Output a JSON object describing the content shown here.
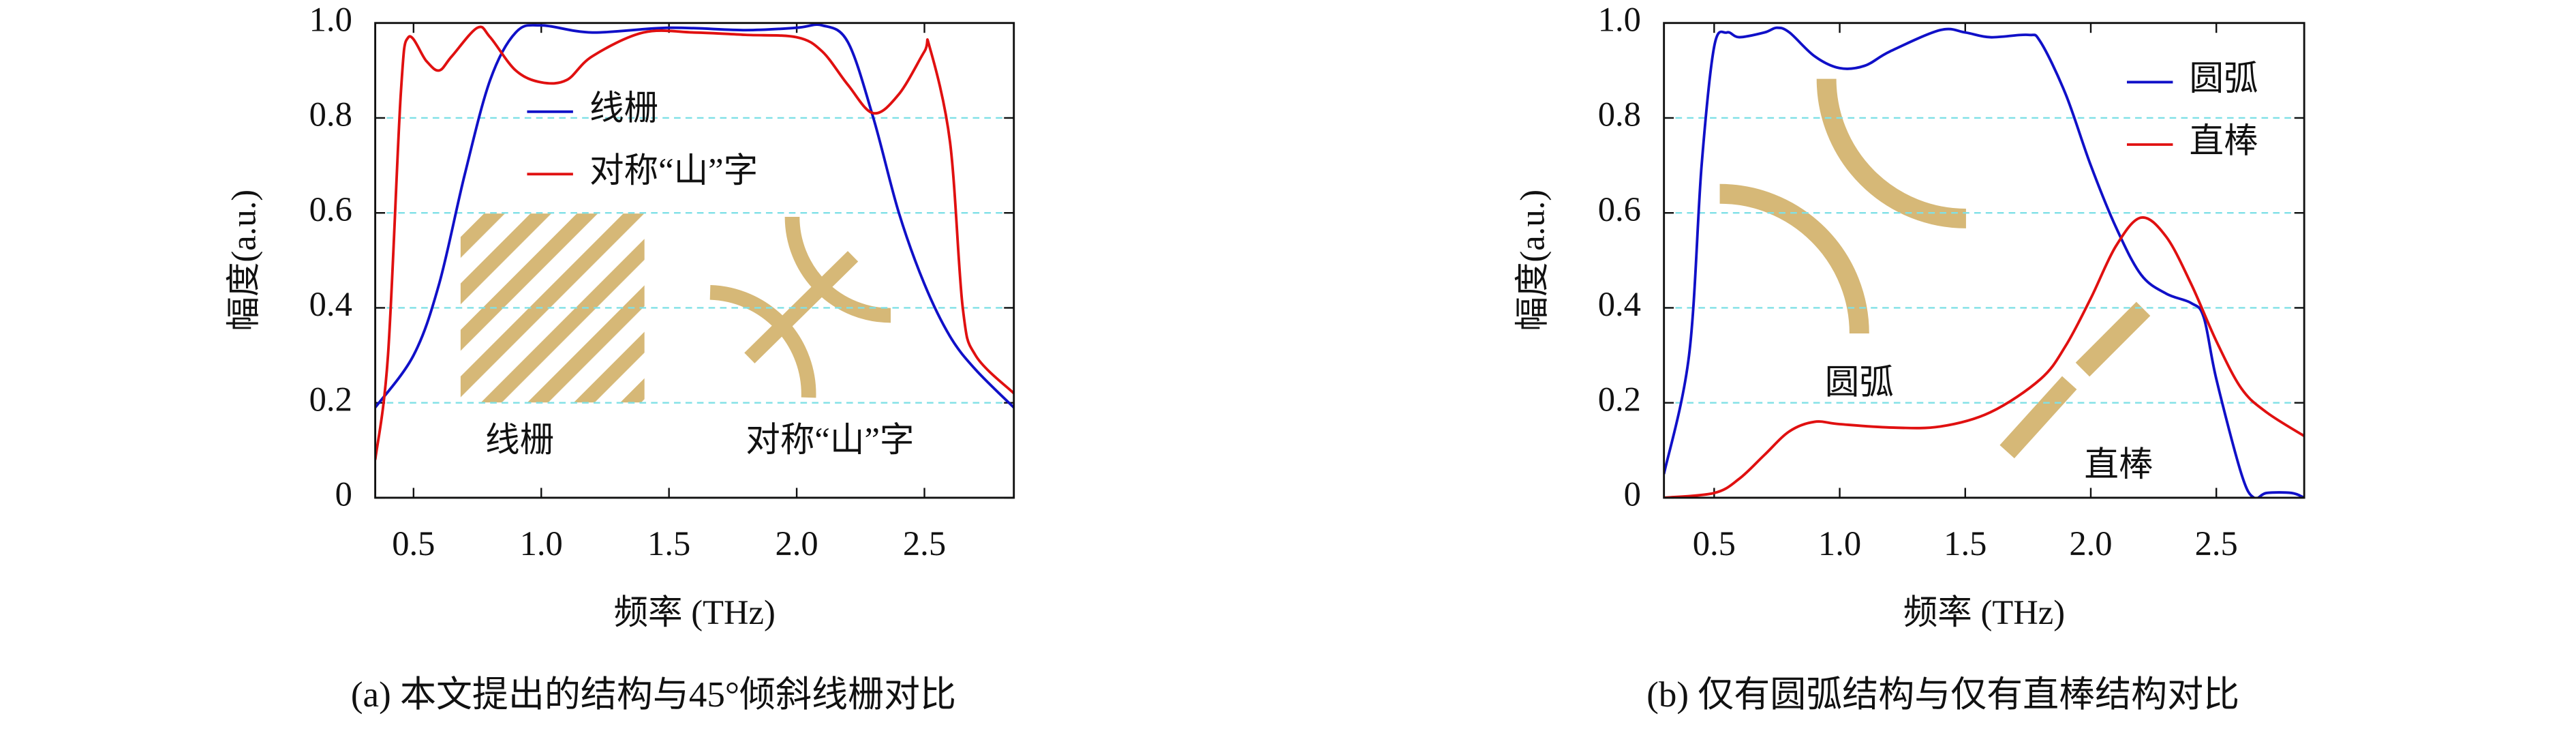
{
  "chart_data": [
    {
      "type": "line",
      "caption": "(a) 本文提出的结构与45°倾斜线栅对比",
      "xlabel": "频率 (THz)",
      "ylabel": "幅度(a.u.)",
      "xlim": [
        0.35,
        2.85
      ],
      "ylim": [
        0,
        1
      ],
      "xticks": [
        0.5,
        {
          "value": 1,
          "label": "1.0"
        },
        1.5,
        {
          "value": 2,
          "label": "2.0"
        },
        2.5
      ],
      "yticks": [
        0,
        0.2,
        0.4,
        0.6,
        0.8,
        {
          "value": 1,
          "label": "1.0"
        }
      ],
      "grid": true,
      "legend": "upper center",
      "series": [
        {
          "name": "线栅",
          "color": "#1010c8",
          "x": [
            0.35,
            0.5,
            0.6,
            0.7,
            0.8,
            0.9,
            1.0,
            1.2,
            1.5,
            1.8,
            2.0,
            2.1,
            2.2,
            2.3,
            2.4,
            2.5,
            2.6,
            2.7,
            2.85
          ],
          "values": [
            0.19,
            0.3,
            0.45,
            0.68,
            0.88,
            0.98,
            0.995,
            0.98,
            0.99,
            0.985,
            0.99,
            0.995,
            0.96,
            0.8,
            0.6,
            0.45,
            0.34,
            0.27,
            0.19
          ]
        },
        {
          "name": "对称“山”字",
          "color": "#e01010",
          "x": [
            0.35,
            0.4,
            0.45,
            0.48,
            0.55,
            0.6,
            0.65,
            0.75,
            0.8,
            0.9,
            1.0,
            1.1,
            1.2,
            1.4,
            1.6,
            1.8,
            2.0,
            2.1,
            2.2,
            2.3,
            2.4,
            2.5,
            2.52,
            2.6,
            2.65,
            2.7,
            2.85
          ],
          "values": [
            0.08,
            0.3,
            0.85,
            0.97,
            0.92,
            0.9,
            0.93,
            0.99,
            0.97,
            0.9,
            0.875,
            0.88,
            0.93,
            0.98,
            0.98,
            0.975,
            0.97,
            0.94,
            0.87,
            0.81,
            0.85,
            0.94,
            0.95,
            0.75,
            0.4,
            0.3,
            0.22
          ]
        }
      ],
      "annotations": [
        "线栅",
        "对称“山”字"
      ]
    },
    {
      "type": "line",
      "caption": "(b) 仅有圆弧结构与仅有直棒结构对比",
      "xlabel": "频率 (THz)",
      "ylabel": "幅度(a.u.)",
      "xlim": [
        0.3,
        2.85
      ],
      "ylim": [
        0,
        1
      ],
      "xticks": [
        0.5,
        {
          "value": 1,
          "label": "1.0"
        },
        1.5,
        {
          "value": 2,
          "label": "2.0"
        },
        2.5
      ],
      "yticks": [
        0,
        0.2,
        0.4,
        0.6,
        0.8,
        {
          "value": 1,
          "label": "1.0"
        }
      ],
      "grid": true,
      "legend": "upper right",
      "series": [
        {
          "name": "圆弧",
          "color": "#1010c8",
          "x": [
            0.3,
            0.4,
            0.45,
            0.5,
            0.55,
            0.6,
            0.7,
            0.75,
            0.8,
            0.9,
            1.0,
            1.1,
            1.2,
            1.4,
            1.5,
            1.6,
            1.75,
            1.8,
            1.9,
            2.0,
            2.1,
            2.2,
            2.3,
            2.4,
            2.45,
            2.5,
            2.6,
            2.65,
            2.7,
            2.8,
            2.85
          ],
          "values": [
            0.05,
            0.3,
            0.7,
            0.95,
            0.98,
            0.97,
            0.98,
            0.99,
            0.98,
            0.93,
            0.905,
            0.91,
            0.94,
            0.985,
            0.98,
            0.97,
            0.975,
            0.96,
            0.85,
            0.7,
            0.57,
            0.47,
            0.43,
            0.41,
            0.38,
            0.25,
            0.05,
            0,
            0.01,
            0.01,
            0
          ]
        },
        {
          "name": "直棒",
          "color": "#e01010",
          "x": [
            0.3,
            0.5,
            0.6,
            0.7,
            0.8,
            0.9,
            1.0,
            1.2,
            1.4,
            1.6,
            1.8,
            1.9,
            2.0,
            2.1,
            2.2,
            2.3,
            2.4,
            2.5,
            2.6,
            2.7,
            2.85
          ],
          "values": [
            0,
            0.01,
            0.04,
            0.09,
            0.14,
            0.16,
            0.155,
            0.148,
            0.15,
            0.18,
            0.25,
            0.32,
            0.42,
            0.53,
            0.59,
            0.55,
            0.45,
            0.33,
            0.23,
            0.18,
            0.13
          ]
        }
      ],
      "annotations": [
        "圆弧",
        "直棒"
      ]
    }
  ]
}
